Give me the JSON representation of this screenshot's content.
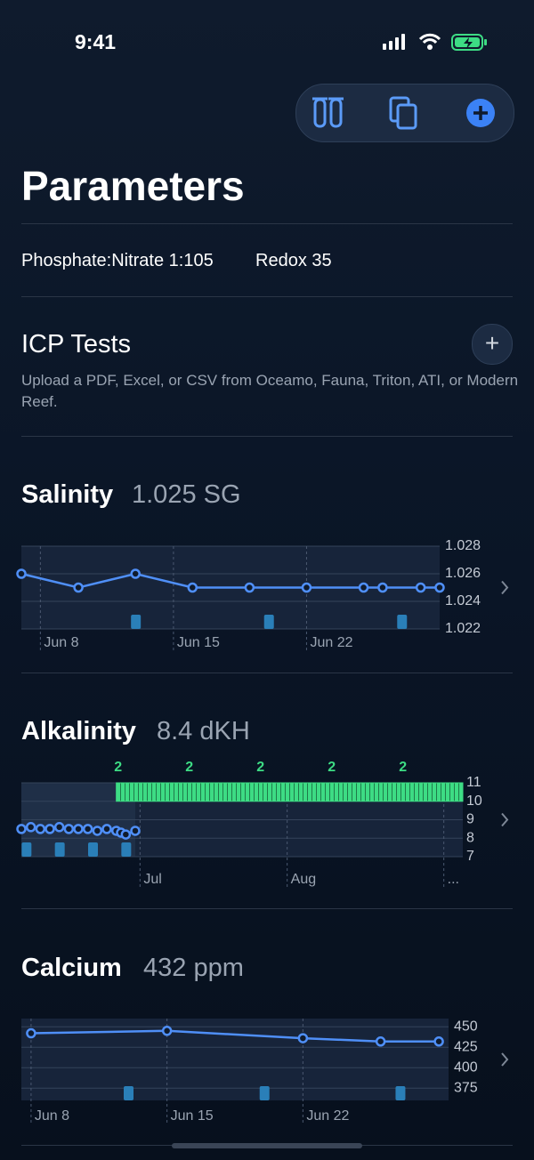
{
  "status": {
    "time": "9:41"
  },
  "header": {
    "title": "Parameters"
  },
  "summary": [
    "Phosphate:Nitrate 1:105",
    "Redox 35"
  ],
  "icp": {
    "title": "ICP Tests",
    "description": "Upload a PDF, Excel, or CSV from Oceamo, Fauna, Triton, ATI, or Modern Reef."
  },
  "parameters": [
    {
      "name": "Salinity",
      "reading": "1.025 SG",
      "chart_data": {
        "type": "line",
        "color": "#4f8ff7",
        "x": [
          7,
          10,
          13,
          16,
          19,
          22,
          25,
          26,
          28,
          29
        ],
        "values": [
          1.026,
          1.025,
          1.026,
          1.025,
          1.025,
          1.025,
          1.025,
          1.025,
          1.025,
          1.025
        ],
        "xlim": [
          7,
          29
        ],
        "ylim": [
          1.022,
          1.028
        ],
        "xticks": [
          {
            "value": 8,
            "label": "Jun 8"
          },
          {
            "value": 15,
            "label": "Jun 15"
          },
          {
            "value": 22,
            "label": "Jun 22"
          }
        ],
        "yticks": [
          1.022,
          1.024,
          1.026,
          1.028
        ],
        "events": [
          13,
          20,
          27
        ]
      }
    },
    {
      "name": "Alkalinity",
      "reading": "8.4 dKH",
      "chart_data": {
        "type": "line",
        "color": "#4f8ff7",
        "x": [
          157,
          159,
          161,
          163,
          165,
          167,
          169,
          171,
          173,
          175,
          177,
          178,
          179,
          181
        ],
        "values": [
          8.5,
          8.6,
          8.5,
          8.5,
          8.6,
          8.5,
          8.5,
          8.5,
          8.4,
          8.5,
          8.4,
          8.3,
          8.2,
          8.4
        ],
        "xlim": [
          157,
          250
        ],
        "ylim": [
          7,
          11
        ],
        "xticks": [
          {
            "value": 182,
            "label": "Jul"
          },
          {
            "value": 213,
            "label": "Aug"
          },
          {
            "value": 246,
            "label": "..."
          }
        ],
        "yticks": [
          7,
          8,
          9,
          10,
          11
        ],
        "events": [
          158,
          165,
          172,
          179
        ],
        "band": {
          "x": [
            177,
            250
          ],
          "y": [
            10,
            11
          ],
          "color": "#3ddc84",
          "labels": [
            2,
            2,
            2,
            2,
            2
          ]
        }
      }
    },
    {
      "name": "Calcium",
      "reading": "432 ppm",
      "chart_data": {
        "type": "line",
        "color": "#4f8ff7",
        "x": [
          8,
          15,
          22,
          26,
          29
        ],
        "values": [
          442,
          445,
          436,
          432,
          432
        ],
        "xlim": [
          7.5,
          29.5
        ],
        "ylim": [
          360,
          460
        ],
        "xticks": [
          {
            "value": 8,
            "label": "Jun 8"
          },
          {
            "value": 15,
            "label": "Jun 15"
          },
          {
            "value": 22,
            "label": "Jun 22"
          }
        ],
        "yticks": [
          375,
          400,
          425,
          450
        ],
        "events": [
          13,
          20,
          27
        ]
      }
    }
  ]
}
